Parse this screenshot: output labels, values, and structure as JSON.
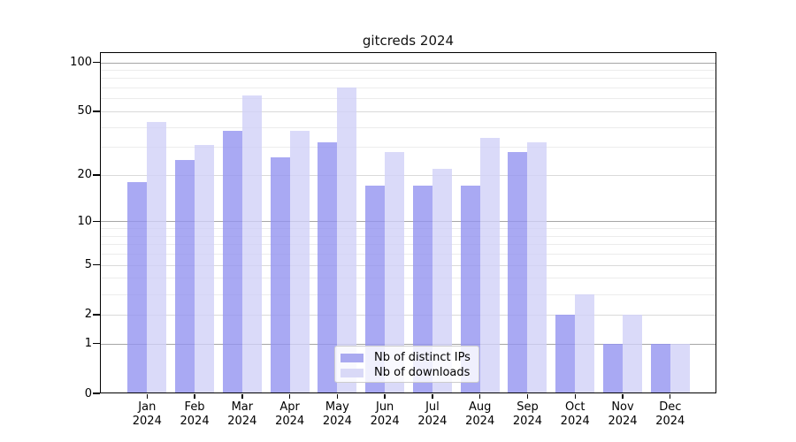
{
  "chart_data": {
    "type": "bar",
    "title": "gitcreds 2024",
    "categories": [
      "Jan",
      "Feb",
      "Mar",
      "Apr",
      "May",
      "Jun",
      "Jul",
      "Aug",
      "Sep",
      "Oct",
      "Nov",
      "Dec"
    ],
    "category_year": "2024",
    "series": [
      {
        "name": "Nb of distinct IPs",
        "values": [
          18,
          25,
          38,
          26,
          32,
          17,
          17,
          17,
          28,
          2,
          1,
          1
        ],
        "fill": "rgba(147,147,240,0.8)",
        "legend_color": "#a9a9f0"
      },
      {
        "name": "Nb of downloads",
        "values": [
          43,
          31,
          63,
          38,
          70,
          28,
          22,
          34,
          32,
          3,
          2,
          1
        ],
        "fill": "rgba(209,209,247,0.8)",
        "legend_color": "#d9d9f7"
      }
    ],
    "yscale": "log1p",
    "ylim": [
      0,
      100
    ],
    "ytick_labels": [
      "0",
      "1",
      "2",
      "5",
      "10",
      "20",
      "50",
      "100"
    ],
    "yticks": [
      0,
      1,
      2,
      5,
      10,
      20,
      50,
      100
    ],
    "decade_gridlines": [
      1,
      10,
      100
    ],
    "mid_gridlines": [
      2,
      5,
      20,
      50
    ],
    "minor_gridlines": [
      3,
      4,
      6,
      7,
      8,
      9,
      30,
      40,
      60,
      70,
      80,
      90
    ],
    "grid": true,
    "legend_position": "bottom-center",
    "colors": {
      "decade_grid": "#a6a6a6",
      "mid_grid": "#dadada",
      "minor_grid": "#ececec",
      "spine": "#000000",
      "text": "#000000"
    }
  }
}
